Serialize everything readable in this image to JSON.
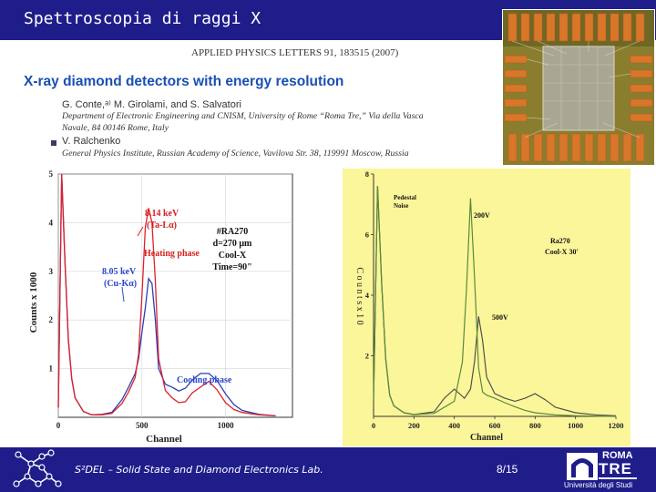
{
  "slide": {
    "title": "Spettroscopia di raggi X",
    "lab_name": "S²DEL – Solid State and Diamond Electronics Lab.",
    "page_number": "8/15"
  },
  "paper": {
    "journal": "APPLIED PHYSICS LETTERS 91, 183515 (2007)",
    "title": "X-ray diamond detectors with energy resolution",
    "authors_1": "G. Conte,ᵃ⁾ M. Girolami, and S. Salvatori",
    "affiliation_1a": "Department of Electronic Engineering and CNISM, University of Rome “Roma Tre,” Via della Vasca",
    "affiliation_1b": "Navale, 84   00146 Rome, Italy",
    "authors_2": "V. Ralchenko",
    "affiliation_2": "General Physics Institute, Russian Academy of Science, Vavilova Str. 38, 119991 Moscow, Russia"
  },
  "university": {
    "name_line1": "ROMA",
    "name_line2": "TRE",
    "subtitle": "Università degli Studi"
  },
  "colors": {
    "header_bg": "#1f1d8a",
    "paper_title": "#1a4fb4",
    "chart_left_bg": "#ffffff",
    "chart_right_bg": "#fbf69a",
    "series_red": "#e0202a",
    "series_blue": "#2a3fb8",
    "series_green": "#5a8a3a",
    "series_gray": "#505050",
    "annotation_red": "#d62020",
    "annotation_blue": "#2a48c8"
  },
  "chart_data": [
    {
      "type": "line",
      "xlabel": "Channel",
      "ylabel": "Counts x 1000",
      "xlim": [
        0,
        1400
      ],
      "ylim": [
        0,
        5
      ],
      "x_ticks": [
        "0",
        "500",
        "1000"
      ],
      "y_ticks": [
        "1",
        "2",
        "3",
        "4",
        "5"
      ],
      "grid": true,
      "annotations": {
        "peak_ta": "8.14 keV",
        "peak_ta_line": "(Ta-Lα)",
        "heating": "Heating phase",
        "peak_cu": "8.05 keV",
        "peak_cu_line": "(Cu-Kα)",
        "sample_id": "#RA270",
        "sample_d": "d=270 μm",
        "sample_cool": "Cool-X",
        "sample_time": "Time=90\"",
        "cooling": "Cooling phase"
      },
      "series": [
        {
          "color": "red",
          "x": [
            0,
            20,
            40,
            60,
            80,
            100,
            150,
            200,
            260,
            320,
            380,
            420,
            460,
            480,
            500,
            520,
            540,
            560,
            580,
            600,
            640,
            680,
            700,
            720,
            760,
            800,
            850,
            900,
            950,
            1000,
            1050,
            1100,
            1200,
            1300
          ],
          "y": [
            0.2,
            5,
            3.2,
            1.6,
            0.8,
            0.4,
            0.12,
            0.05,
            0.05,
            0.08,
            0.28,
            0.52,
            0.82,
            1.3,
            2.5,
            3.9,
            4.3,
            4.0,
            2.8,
            1.2,
            0.55,
            0.4,
            0.35,
            0.3,
            0.32,
            0.5,
            0.62,
            0.74,
            0.56,
            0.3,
            0.16,
            0.1,
            0.05,
            0.03
          ]
        },
        {
          "color": "blue",
          "x": [
            0,
            20,
            40,
            60,
            80,
            100,
            150,
            200,
            260,
            320,
            380,
            420,
            460,
            480,
            500,
            520,
            540,
            560,
            580,
            600,
            640,
            680,
            700,
            720,
            760,
            800,
            850,
            900,
            950,
            1000,
            1050,
            1100,
            1200,
            1300
          ],
          "y": [
            0.2,
            5,
            3.2,
            1.6,
            0.8,
            0.4,
            0.12,
            0.05,
            0.06,
            0.1,
            0.36,
            0.62,
            0.9,
            1.2,
            1.75,
            2.25,
            2.85,
            2.75,
            2.0,
            1.0,
            0.68,
            0.62,
            0.58,
            0.54,
            0.6,
            0.76,
            0.9,
            0.9,
            0.75,
            0.48,
            0.26,
            0.14,
            0.06,
            0.03
          ]
        }
      ]
    },
    {
      "type": "line",
      "xlabel": "Channel",
      "ylabel": "C o u n t s  x 1 0",
      "xlim": [
        0,
        1200
      ],
      "ylim": [
        0,
        8
      ],
      "x_ticks": [
        "0",
        "200",
        "400",
        "600",
        "800",
        "1000",
        "1200"
      ],
      "y_ticks": [
        "2",
        "4",
        "6",
        "8"
      ],
      "annotations": {
        "pedestal": "Pedestal",
        "noise": "Noise",
        "v200": "200V",
        "v500": "500V",
        "sample": "Ra270",
        "condition": "Cool-X 30'"
      },
      "series": [
        {
          "name": "200V",
          "color": "green",
          "x": [
            0,
            20,
            40,
            60,
            80,
            100,
            150,
            200,
            300,
            400,
            440,
            460,
            480,
            500,
            520,
            540,
            560,
            600,
            650,
            700,
            750,
            800,
            900,
            1000,
            1100,
            1200
          ],
          "y": [
            0.5,
            7.6,
            4.4,
            1.9,
            0.7,
            0.35,
            0.12,
            0.06,
            0.1,
            0.5,
            1.8,
            4.2,
            7.2,
            4.6,
            1.6,
            0.8,
            0.7,
            0.6,
            0.45,
            0.32,
            0.2,
            0.12,
            0.05,
            0.02,
            0.01,
            0.0
          ]
        },
        {
          "name": "500V",
          "color": "gray",
          "x": [
            0,
            20,
            40,
            60,
            80,
            100,
            150,
            200,
            300,
            350,
            400,
            450,
            480,
            500,
            520,
            540,
            560,
            600,
            650,
            700,
            750,
            800,
            850,
            900,
            1000,
            1100,
            1200
          ],
          "y": [
            0.5,
            7.6,
            4.4,
            1.9,
            0.7,
            0.35,
            0.12,
            0.06,
            0.15,
            0.6,
            0.9,
            0.6,
            0.9,
            1.8,
            3.3,
            2.5,
            1.3,
            0.75,
            0.6,
            0.5,
            0.6,
            0.75,
            0.55,
            0.3,
            0.12,
            0.05,
            0.02
          ]
        }
      ]
    }
  ]
}
